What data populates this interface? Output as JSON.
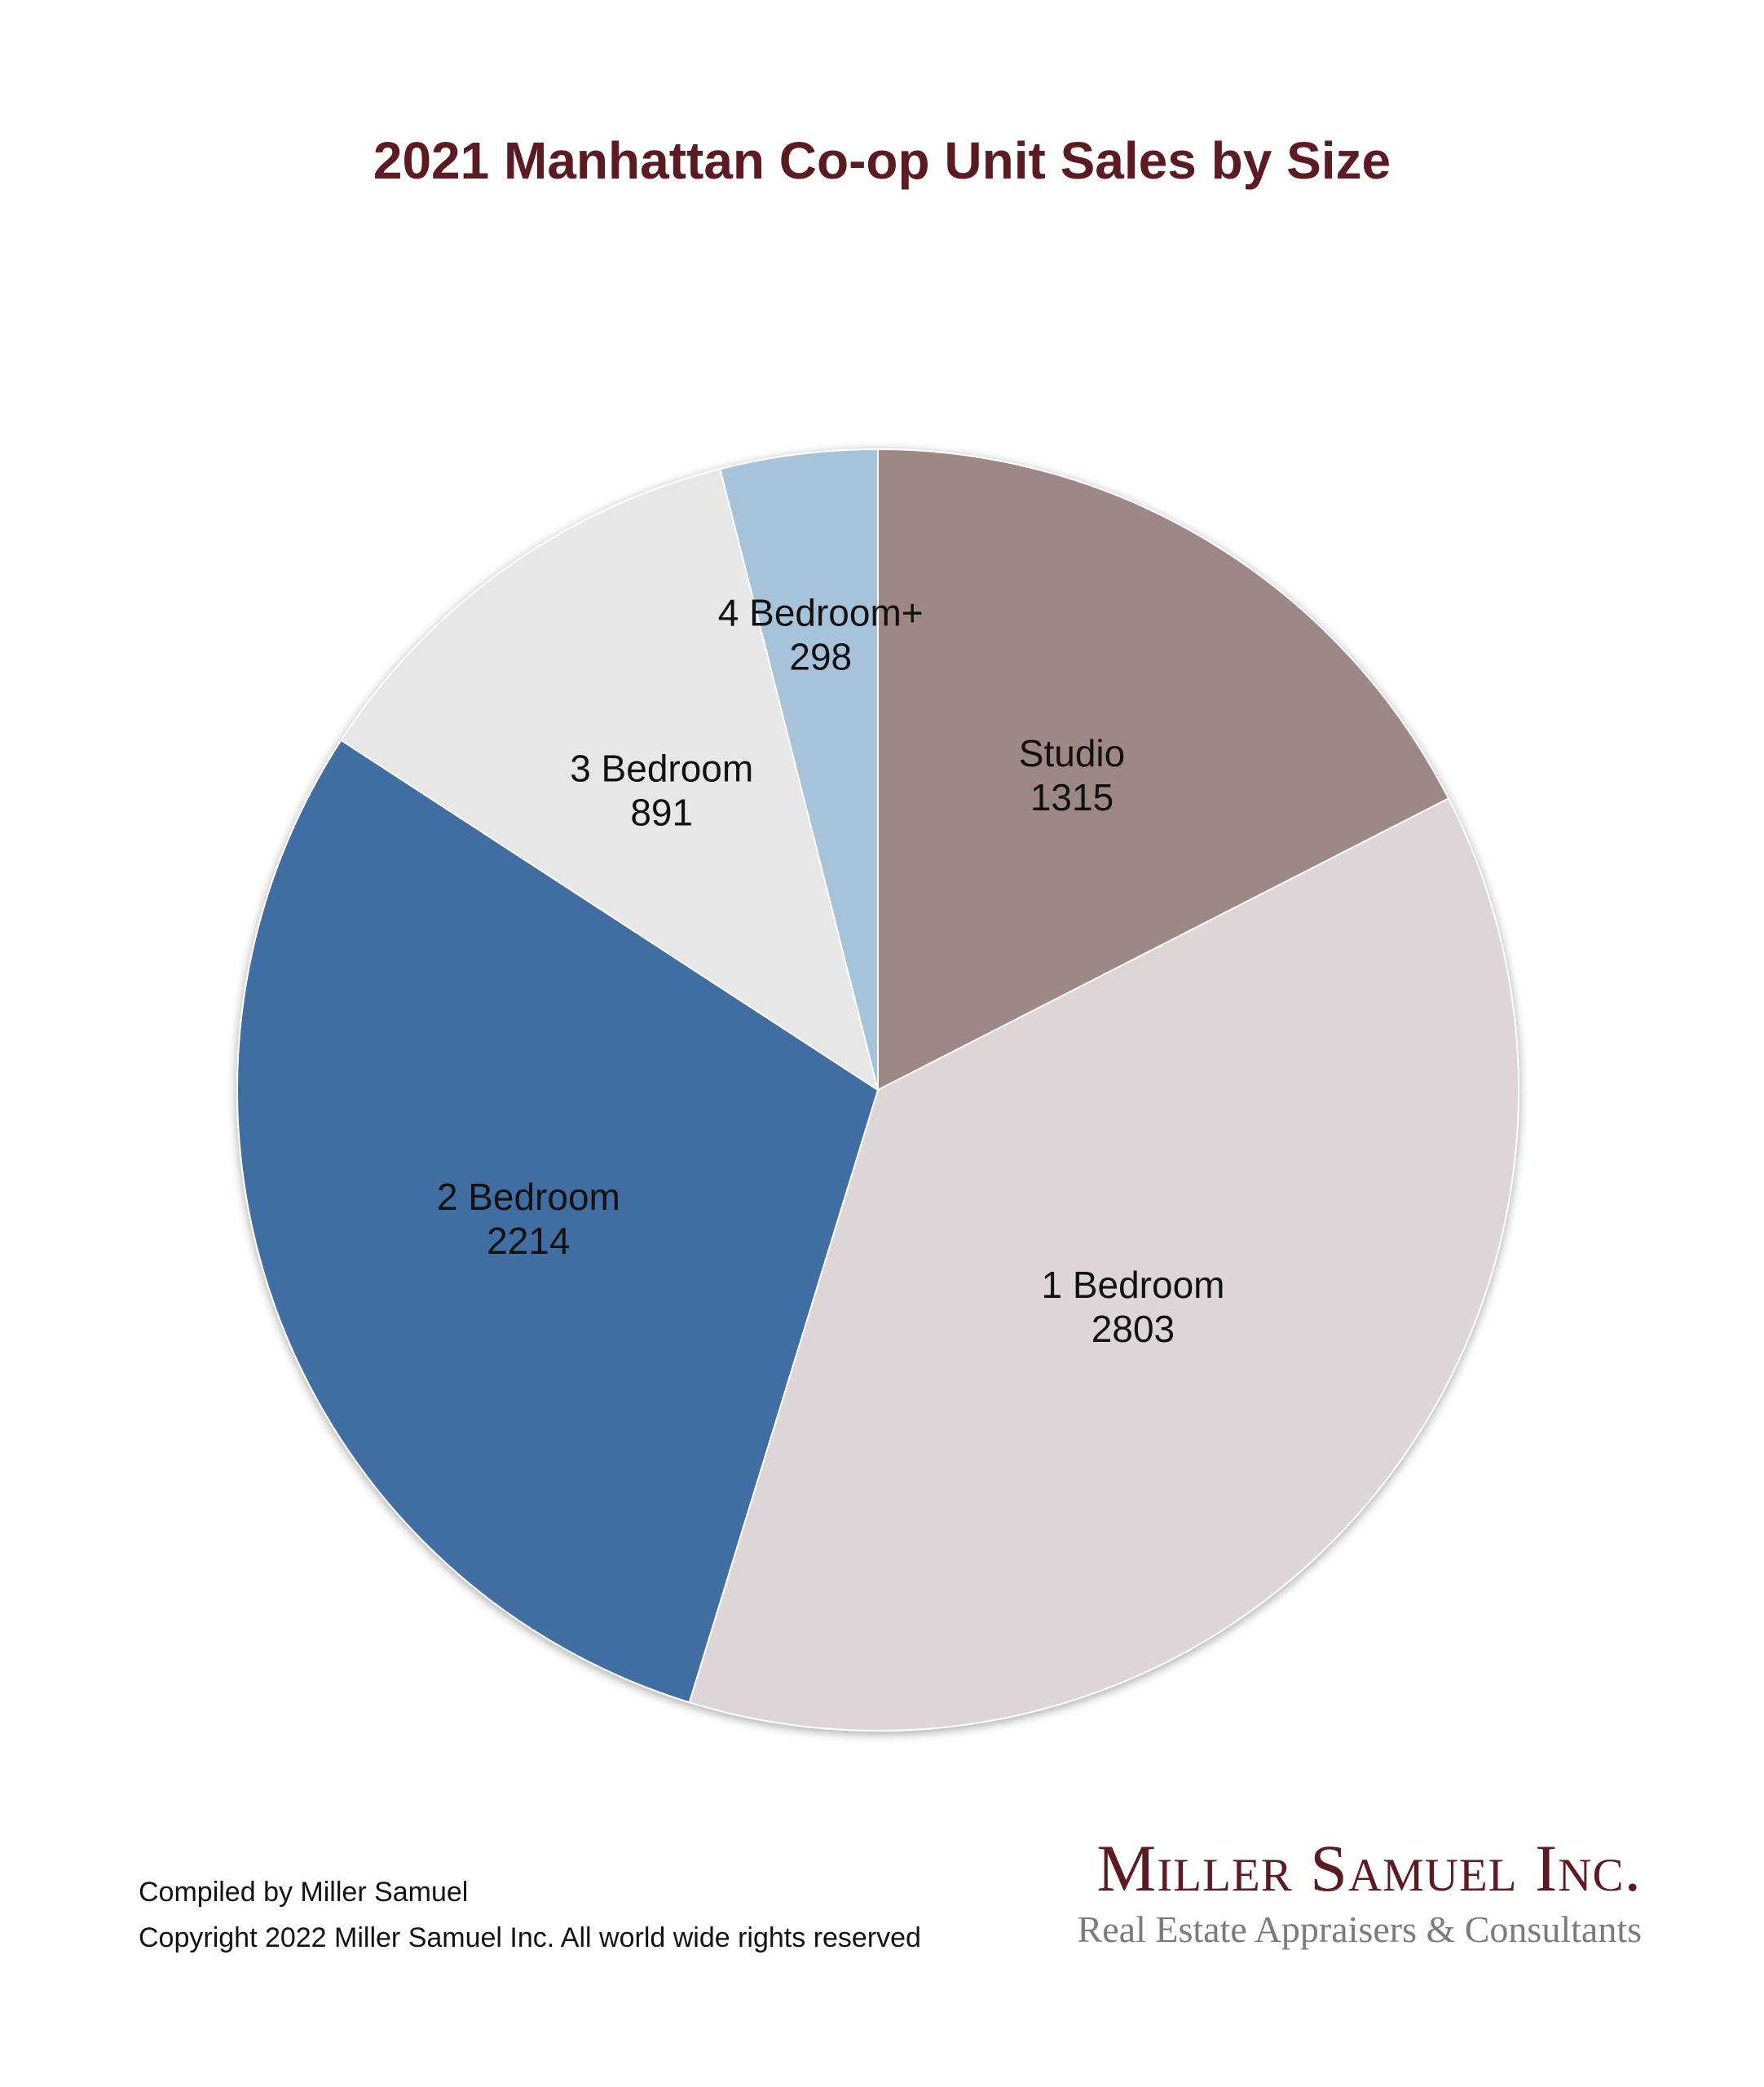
{
  "chart_data": {
    "type": "pie",
    "title": "2021 Manhattan Co-op Unit Sales by Size",
    "categories": [
      "Studio",
      "1 Bedroom",
      "2 Bedroom",
      "3 Bedroom",
      "4 Bedroom+"
    ],
    "values": [
      1315,
      2803,
      2214,
      891,
      298
    ],
    "value_labels": [
      "1315",
      "2803",
      "2214",
      "891",
      "298"
    ],
    "colors": [
      "#9e8886",
      "#ddd5d6",
      "#416ea2",
      "#e7e7e7",
      "#a7c3da"
    ],
    "start": "12 o'clock, clockwise",
    "legend": "none (labels inside slices)"
  },
  "footer": {
    "compiled": "Compiled by Miller Samuel",
    "copyright": "Copyright 2022 Miller Samuel Inc. All world wide rights reserved"
  },
  "brand": {
    "name": "Miller Samuel Inc.",
    "tagline": "Real Estate Appraisers & Consultants",
    "color": "#5c1a22"
  }
}
